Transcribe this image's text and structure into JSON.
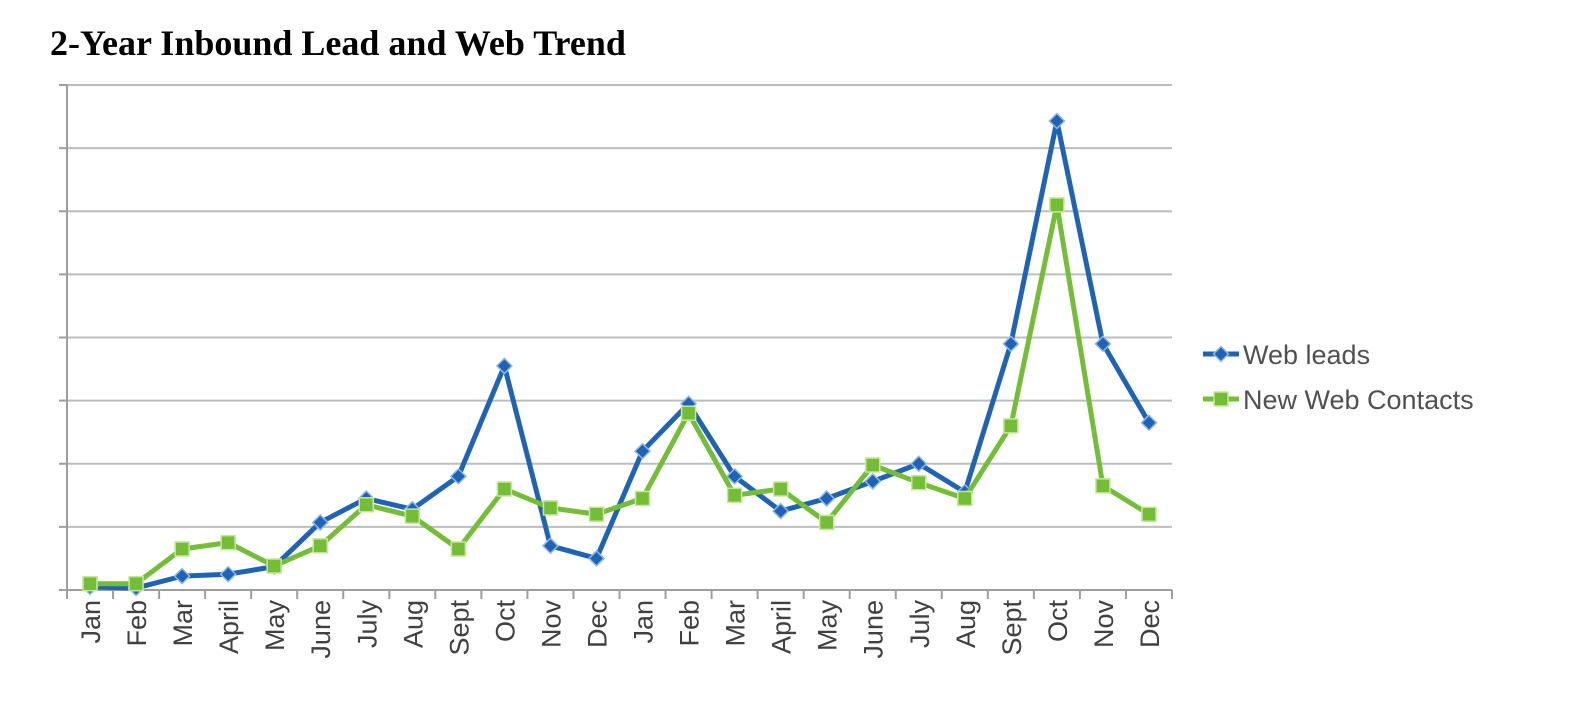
{
  "chart_data": {
    "type": "line",
    "title": "2-Year Inbound Lead and Web Trend",
    "xlabel": "",
    "ylabel": "",
    "categories": [
      "Jan",
      "Feb",
      "Mar",
      "April",
      "May",
      "June",
      "July",
      "Aug",
      "Sept",
      "Oct",
      "Nov",
      "Dec",
      "Jan",
      "Feb",
      "Mar",
      "April",
      "May",
      "June",
      "July",
      "Aug",
      "Sept",
      "Oct",
      "Nov",
      "Dec"
    ],
    "ylim": [
      0,
      8
    ],
    "y_tick_count": 8,
    "y_tick_labels_shown": false,
    "grid": true,
    "legend_position": "right",
    "series": [
      {
        "name": "Web leads",
        "color": "#1F64B4",
        "marker": "diamond",
        "values": [
          0.05,
          0.03,
          0.22,
          0.25,
          0.37,
          1.07,
          1.45,
          1.28,
          1.8,
          3.55,
          0.7,
          0.5,
          2.2,
          2.95,
          1.8,
          1.25,
          1.45,
          1.72,
          2.0,
          1.55,
          3.9,
          7.43,
          3.9,
          2.65
        ]
      },
      {
        "name": "New Web Contacts",
        "color": "#74BD36",
        "marker": "square",
        "values": [
          0.1,
          0.1,
          0.65,
          0.75,
          0.38,
          0.7,
          1.35,
          1.17,
          0.65,
          1.6,
          1.3,
          1.2,
          1.45,
          2.8,
          1.5,
          1.6,
          1.07,
          1.98,
          1.7,
          1.45,
          2.6,
          6.1,
          1.65,
          1.2
        ]
      }
    ]
  }
}
